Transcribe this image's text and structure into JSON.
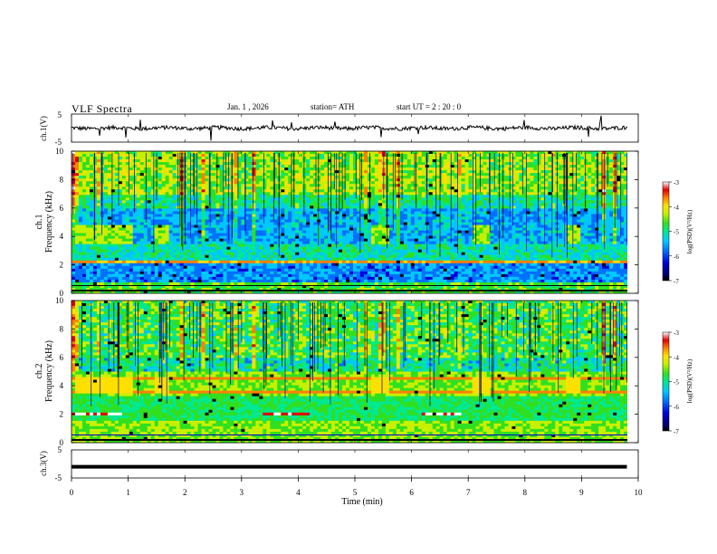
{
  "header": {
    "title": "VLF  Spectra",
    "date": "Jan.  1  , 2026",
    "station": "station= ATH",
    "start": "start  UT  =   2  : 20 : 0"
  },
  "chart_data": [
    {
      "type": "line",
      "panel": "ch1-waveform",
      "ylabel": "ch.1(V)",
      "ylim": [
        -5,
        5
      ],
      "yticks": [
        "5",
        "-5"
      ],
      "xlim": [
        0,
        10
      ],
      "trace_color": "#000000",
      "note_series": "noisy waveform, roughly -1 V to 1 V with brief spikes"
    },
    {
      "type": "heatmap",
      "panel": "ch1-spectrogram",
      "ylabel": "ch.1\nFrequency  (kHz)",
      "ylim": [
        0,
        10
      ],
      "yticks": [
        "0",
        "2",
        "4",
        "6",
        "8",
        "10"
      ],
      "xlim": [
        0,
        10
      ],
      "colorbar": {
        "label": "log(PSD)(V²/Hz)",
        "range": [
          -7,
          -3
        ],
        "ticks": [
          "-3",
          "-4",
          "-5",
          "-6",
          "-7"
        ],
        "colors": [
          "#000000",
          "#0000c8",
          "#0060ff",
          "#00c0ff",
          "#00e8a0",
          "#30e020",
          "#c8f000",
          "#ffe000",
          "#ff8000",
          "#e00000",
          "#ffffff"
        ]
      }
    },
    {
      "type": "heatmap",
      "panel": "ch2-spectrogram",
      "ylabel": "ch.2\nFrequency  (kHz)",
      "ylim": [
        0,
        10
      ],
      "yticks": [
        "0",
        "2",
        "4",
        "6",
        "8",
        "10"
      ],
      "xlim": [
        0,
        10
      ],
      "colorbar": {
        "label": "log(PSD)(V²/Hz)",
        "range": [
          -7,
          -3
        ],
        "ticks": [
          "-3",
          "-4",
          "-5",
          "-6",
          "-7"
        ]
      }
    },
    {
      "type": "line",
      "panel": "ch3-waveform",
      "ylabel": "ch.3(V)",
      "ylim": [
        -5,
        5
      ],
      "yticks": [
        "5",
        "-5"
      ],
      "xlim": [
        0,
        10
      ],
      "x": [
        0,
        9.8
      ],
      "y": [
        -1,
        -1
      ],
      "trace_color": "#000000"
    }
  ],
  "xaxis": {
    "label": "Time  (min)",
    "ticks": [
      "0",
      "1",
      "2",
      "3",
      "4",
      "5",
      "6",
      "7",
      "8",
      "9",
      "10"
    ]
  },
  "cbar_label": "log(PSD)(V²/Hz)"
}
